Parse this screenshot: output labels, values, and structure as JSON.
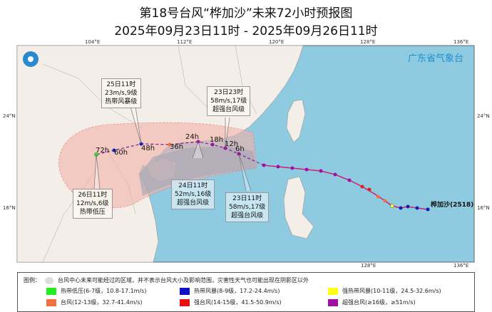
{
  "title": "第18号台风“桦加沙”未来72小时预报图",
  "subtitle": "2025年09月23日11时 - 2025年09月26日11时",
  "agency": "广东省气象台",
  "axes": {
    "lon_ticks": [
      "104°E",
      "112°E",
      "120°E",
      "128°E",
      "136°E"
    ],
    "lat_ticks": [
      "24°N",
      "16°N"
    ]
  },
  "typhoon_label": "桦加沙(2518)",
  "forecast_hours": [
    "6h",
    "12h",
    "18h",
    "24h",
    "36h",
    "48h",
    "60h",
    "72h"
  ],
  "annotations": [
    {
      "time": "25日11时",
      "wind": "23m/s,9级",
      "level": "热带风暴级"
    },
    {
      "time": "23日23时",
      "wind": "58m/s,17级",
      "level": "超强台风级"
    },
    {
      "time": "24日11时",
      "wind": "52m/s,16级",
      "level": "超强台风级"
    },
    {
      "time": "23日11时",
      "wind": "58m/s,17级",
      "level": "超强台风级"
    },
    {
      "time": "26日11时",
      "wind": "12m/s,6级",
      "level": "热带低压"
    }
  ],
  "legend": {
    "title": "图例：",
    "cone_note": "台风中心未来可能经过的区域，并不表示台风大小及影响范围，灾害性天气也可能出现在阴影区以外",
    "items": [
      {
        "label": "热带低压(6-7级，10.8-17.1m/s)",
        "color": "#22ee22"
      },
      {
        "label": "热带风暴(8-9级，17.2-24.4m/s)",
        "color": "#1010c8"
      },
      {
        "label": "强热带风暴(10-11级，24.5-32.6m/s)",
        "color": "#ffff10"
      },
      {
        "label": "台风(12-13级，32.7-41.4m/s)",
        "color": "#f07040"
      },
      {
        "label": "强台风(14-15级，41.5-50.9m/s)",
        "color": "#e81010"
      },
      {
        "label": "超强台风(≥16级，≥51m/s)",
        "color": "#a010a0"
      }
    ]
  },
  "colors": {
    "sea": "#8ecbe0",
    "land": "#f3efe8",
    "cone": "#f4b8b0",
    "track_forecast": "#7a2ea0"
  }
}
